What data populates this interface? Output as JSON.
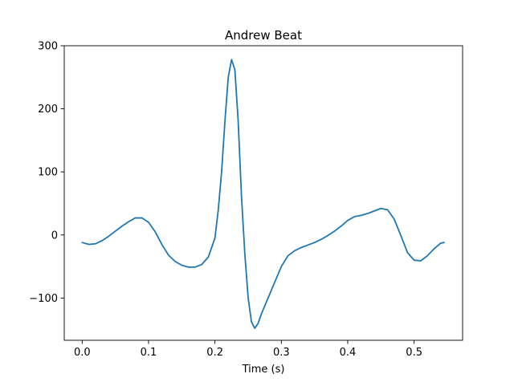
{
  "chart_data": {
    "type": "line",
    "title": "Andrew Beat",
    "xlabel": "Time (s)",
    "ylabel": "",
    "xlim": [
      -0.027,
      0.573
    ],
    "ylim": [
      -167,
      300
    ],
    "xticks": [
      0.0,
      0.1,
      0.2,
      0.3,
      0.4,
      0.5
    ],
    "xtick_labels": [
      "0.0",
      "0.1",
      "0.2",
      "0.3",
      "0.4",
      "0.5"
    ],
    "yticks": [
      -100,
      0,
      100,
      200,
      300
    ],
    "ytick_labels": [
      "−100",
      "0",
      "100",
      "200",
      "300"
    ],
    "grid": false,
    "legend": "none",
    "series": [
      {
        "color": "#1f77b4",
        "x": [
          0.0,
          0.01,
          0.02,
          0.03,
          0.04,
          0.05,
          0.06,
          0.07,
          0.08,
          0.09,
          0.1,
          0.11,
          0.12,
          0.13,
          0.14,
          0.15,
          0.16,
          0.17,
          0.18,
          0.19,
          0.195,
          0.2,
          0.205,
          0.21,
          0.215,
          0.22,
          0.225,
          0.23,
          0.235,
          0.24,
          0.245,
          0.25,
          0.255,
          0.26,
          0.265,
          0.27,
          0.28,
          0.29,
          0.3,
          0.31,
          0.32,
          0.33,
          0.34,
          0.35,
          0.36,
          0.37,
          0.38,
          0.39,
          0.4,
          0.41,
          0.42,
          0.43,
          0.44,
          0.45,
          0.46,
          0.47,
          0.48,
          0.49,
          0.5,
          0.51,
          0.52,
          0.53,
          0.54,
          0.545
        ],
        "y": [
          -12,
          -15,
          -14,
          -9,
          -2,
          6,
          14,
          21,
          27,
          27,
          20,
          5,
          -15,
          -32,
          -42,
          -48,
          -51,
          -51,
          -47,
          -35,
          -20,
          -5,
          40,
          100,
          180,
          250,
          278,
          262,
          180,
          60,
          -30,
          -100,
          -138,
          -148,
          -140,
          -125,
          -100,
          -75,
          -50,
          -33,
          -25,
          -20,
          -16,
          -12,
          -7,
          -1,
          6,
          14,
          23,
          29,
          31,
          34,
          38,
          42,
          40,
          25,
          -1,
          -28,
          -40,
          -41,
          -33,
          -22,
          -13,
          -12
        ]
      }
    ]
  }
}
